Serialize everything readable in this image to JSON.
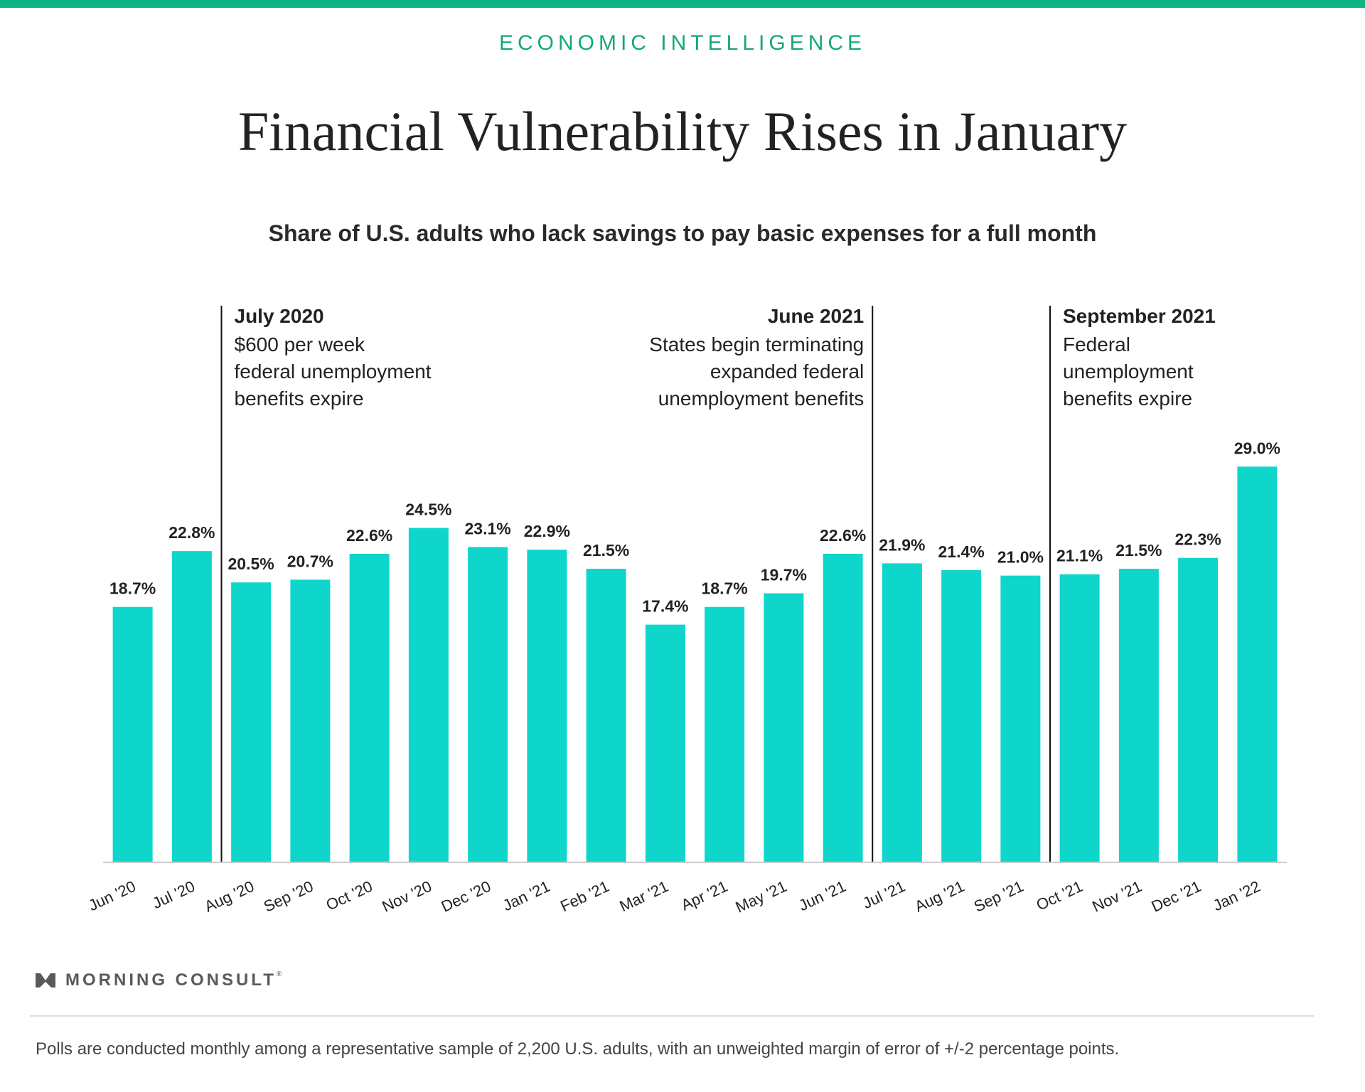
{
  "header": {
    "eyebrow": "ECONOMIC INTELLIGENCE",
    "title": "Financial Vulnerability Rises in January",
    "subtitle": "Share of U.S. adults who lack savings to pay basic expenses for a full month"
  },
  "colors": {
    "accent": "#0bb582",
    "bar": "#0fd6cb",
    "text": "#222222"
  },
  "chart_data": {
    "type": "bar",
    "title": "Financial Vulnerability Rises in January",
    "subtitle": "Share of U.S. adults who lack savings to pay basic expenses for a full month",
    "categories": [
      "Jun '20",
      "Jul '20",
      "Aug '20",
      "Sep '20",
      "Oct '20",
      "Nov '20",
      "Dec '20",
      "Jan '21",
      "Feb '21",
      "Mar '21",
      "Apr '21",
      "May '21",
      "Jun '21",
      "Jul '21",
      "Aug '21",
      "Sep '21",
      "Oct '21",
      "Nov '21",
      "Dec '21",
      "Jan '22"
    ],
    "values": [
      18.7,
      22.8,
      20.5,
      20.7,
      22.6,
      24.5,
      23.1,
      22.9,
      21.5,
      17.4,
      18.7,
      19.7,
      22.6,
      21.9,
      21.4,
      21.0,
      21.1,
      21.5,
      22.3,
      29.0
    ],
    "value_labels": [
      "18.7%",
      "22.8%",
      "20.5%",
      "20.7%",
      "22.6%",
      "24.5%",
      "23.1%",
      "22.9%",
      "21.5%",
      "17.4%",
      "18.7%",
      "19.7%",
      "22.6%",
      "21.9%",
      "21.4%",
      "21.0%",
      "21.1%",
      "21.5%",
      "22.3%",
      "29.0%"
    ],
    "ylim": [
      0,
      29
    ],
    "annotations": [
      {
        "after_category": "Jul '20",
        "align": "left",
        "heading": "July 2020",
        "lines": [
          "$600 per week",
          "federal unemployment",
          "benefits expire"
        ]
      },
      {
        "after_category": "Jun '21",
        "align": "right",
        "heading": "June 2021",
        "lines": [
          "States begin terminating",
          "expanded federal",
          "unemployment benefits"
        ]
      },
      {
        "after_category": "Sep '21",
        "align": "left",
        "heading": "September 2021",
        "lines": [
          "Federal",
          "unemployment",
          "benefits expire"
        ]
      }
    ]
  },
  "footer": {
    "logo_text": "MORNING CONSULT",
    "logo_mark": "®",
    "note": "Polls are conducted monthly among a representative sample of 2,200 U.S. adults, with an unweighted margin of error of +/-2 percentage points."
  }
}
